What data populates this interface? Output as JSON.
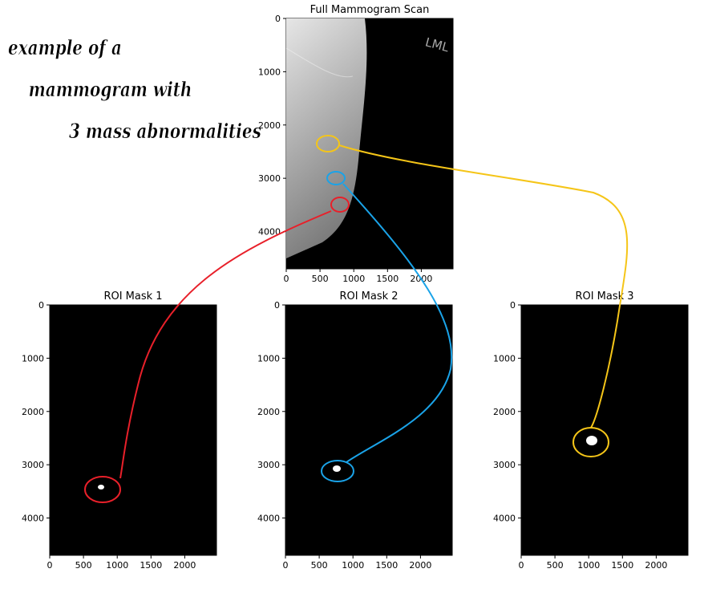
{
  "annotation": [
    "example of a",
    "mammogram with",
    "3 mass abnormalities"
  ],
  "chart_data": [
    {
      "type": "image",
      "title": "Full Mammogram Scan",
      "image_text": "LML",
      "xlim": [
        0,
        2470
      ],
      "ylim": [
        4700,
        0
      ],
      "xticks": [
        0,
        500,
        1000,
        1500,
        2000
      ],
      "yticks": [
        0,
        1000,
        2000,
        3000,
        4000
      ]
    },
    {
      "type": "image",
      "title": "ROI Mask 1",
      "xlim": [
        0,
        2470
      ],
      "ylim": [
        4700,
        0
      ],
      "xticks": [
        0,
        500,
        1000,
        1500,
        2000
      ],
      "yticks": [
        0,
        1000,
        2000,
        3000,
        4000
      ]
    },
    {
      "type": "image",
      "title": "ROI Mask 2",
      "xlim": [
        0,
        2470
      ],
      "ylim": [
        4700,
        0
      ],
      "xticks": [
        0,
        500,
        1000,
        1500,
        2000
      ],
      "yticks": [
        0,
        1000,
        2000,
        3000,
        4000
      ]
    },
    {
      "type": "image",
      "title": "ROI Mask 3",
      "xlim": [
        0,
        2470
      ],
      "ylim": [
        4700,
        0
      ],
      "xticks": [
        0,
        500,
        1000,
        1500,
        2000
      ],
      "yticks": [
        0,
        1000,
        2000,
        3000,
        4000
      ]
    }
  ]
}
